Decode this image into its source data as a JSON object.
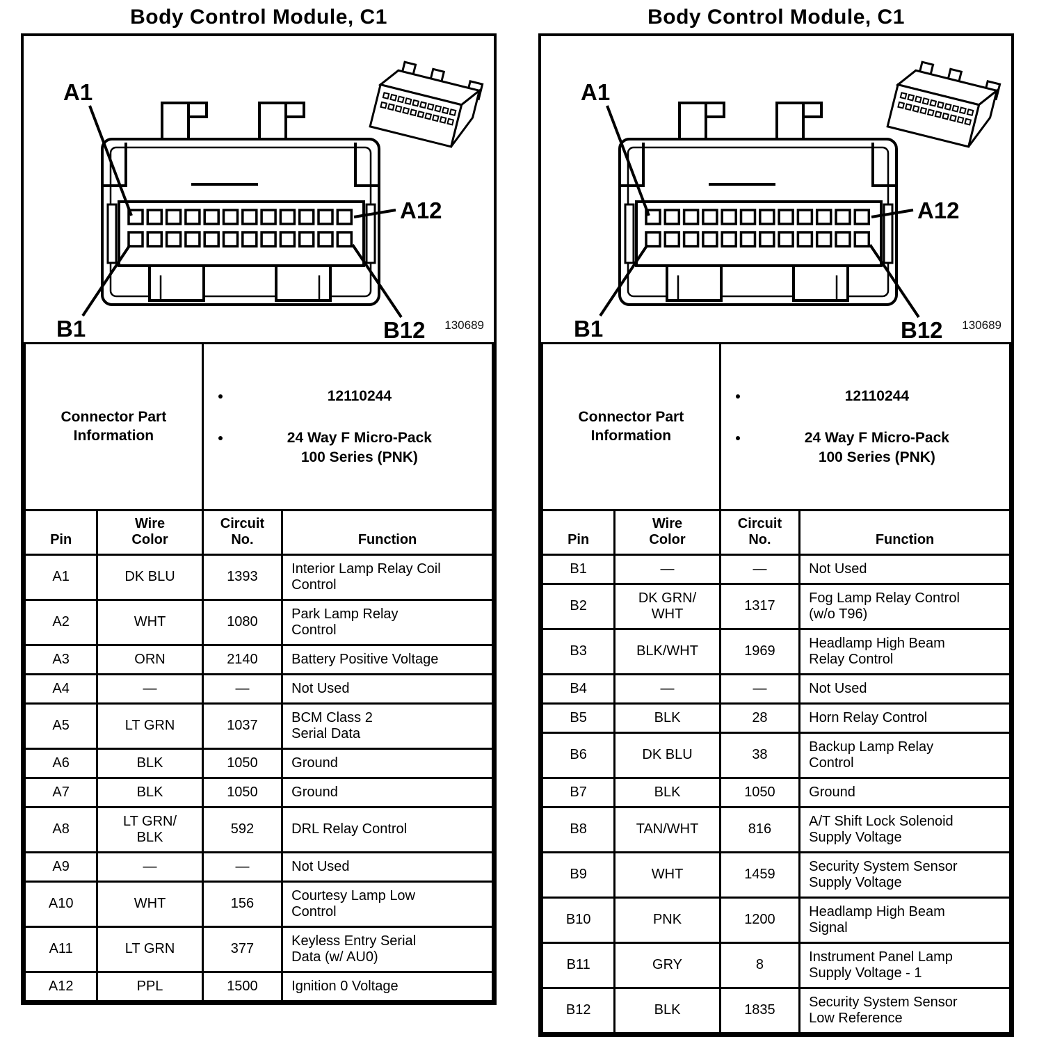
{
  "colors": {
    "ink": "#000000",
    "paper": "#ffffff"
  },
  "panels": [
    {
      "title": "Body Control Module, C1",
      "diagram": {
        "labels": {
          "a1": "A1",
          "a12": "A12",
          "b1": "B1",
          "b12": "B12"
        },
        "figure_number": "130689"
      },
      "part_info": {
        "label": "Connector Part\nInformation",
        "bullets": [
          "12110244",
          "24 Way F Micro-Pack\n100 Series (PNK)"
        ]
      },
      "columns": [
        "Pin",
        "Wire\nColor",
        "Circuit\nNo.",
        "Function"
      ],
      "rows": [
        {
          "pin": "A1",
          "wire_color": "DK BLU",
          "circuit_no": "1393",
          "function": "Interior Lamp Relay Coil\nControl"
        },
        {
          "pin": "A2",
          "wire_color": "WHT",
          "circuit_no": "1080",
          "function": "Park Lamp Relay\nControl"
        },
        {
          "pin": "A3",
          "wire_color": "ORN",
          "circuit_no": "2140",
          "function": "Battery Positive Voltage"
        },
        {
          "pin": "A4",
          "wire_color": "—",
          "circuit_no": "—",
          "function": "Not Used"
        },
        {
          "pin": "A5",
          "wire_color": "LT GRN",
          "circuit_no": "1037",
          "function": "BCM Class 2\nSerial Data"
        },
        {
          "pin": "A6",
          "wire_color": "BLK",
          "circuit_no": "1050",
          "function": "Ground"
        },
        {
          "pin": "A7",
          "wire_color": "BLK",
          "circuit_no": "1050",
          "function": "Ground"
        },
        {
          "pin": "A8",
          "wire_color": "LT GRN/\nBLK",
          "circuit_no": "592",
          "function": "DRL Relay Control"
        },
        {
          "pin": "A9",
          "wire_color": "—",
          "circuit_no": "—",
          "function": "Not Used"
        },
        {
          "pin": "A10",
          "wire_color": "WHT",
          "circuit_no": "156",
          "function": "Courtesy Lamp Low\nControl"
        },
        {
          "pin": "A11",
          "wire_color": "LT GRN",
          "circuit_no": "377",
          "function": "Keyless Entry Serial\nData (w/ AU0)"
        },
        {
          "pin": "A12",
          "wire_color": "PPL",
          "circuit_no": "1500",
          "function": "Ignition 0 Voltage"
        }
      ]
    },
    {
      "title": "Body Control Module, C1",
      "diagram": {
        "labels": {
          "a1": "A1",
          "a12": "A12",
          "b1": "B1",
          "b12": "B12"
        },
        "figure_number": "130689"
      },
      "part_info": {
        "label": "Connector Part\nInformation",
        "bullets": [
          "12110244",
          "24 Way F Micro-Pack\n100 Series (PNK)"
        ]
      },
      "columns": [
        "Pin",
        "Wire\nColor",
        "Circuit\nNo.",
        "Function"
      ],
      "rows": [
        {
          "pin": "B1",
          "wire_color": "—",
          "circuit_no": "—",
          "function": "Not Used"
        },
        {
          "pin": "B2",
          "wire_color": "DK GRN/\nWHT",
          "circuit_no": "1317",
          "function": "Fog Lamp Relay Control\n(w/o T96)"
        },
        {
          "pin": "B3",
          "wire_color": "BLK/WHT",
          "circuit_no": "1969",
          "function": "Headlamp High Beam\nRelay Control"
        },
        {
          "pin": "B4",
          "wire_color": "—",
          "circuit_no": "—",
          "function": "Not Used"
        },
        {
          "pin": "B5",
          "wire_color": "BLK",
          "circuit_no": "28",
          "function": "Horn Relay Control"
        },
        {
          "pin": "B6",
          "wire_color": "DK BLU",
          "circuit_no": "38",
          "function": "Backup Lamp Relay\nControl"
        },
        {
          "pin": "B7",
          "wire_color": "BLK",
          "circuit_no": "1050",
          "function": "Ground"
        },
        {
          "pin": "B8",
          "wire_color": "TAN/WHT",
          "circuit_no": "816",
          "function": "A/T Shift Lock Solenoid\nSupply Voltage"
        },
        {
          "pin": "B9",
          "wire_color": "WHT",
          "circuit_no": "1459",
          "function": "Security System Sensor\nSupply Voltage"
        },
        {
          "pin": "B10",
          "wire_color": "PNK",
          "circuit_no": "1200",
          "function": "Headlamp High Beam\nSignal"
        },
        {
          "pin": "B11",
          "wire_color": "GRY",
          "circuit_no": "8",
          "function": "Instrument Panel Lamp\nSupply Voltage - 1"
        },
        {
          "pin": "B12",
          "wire_color": "BLK",
          "circuit_no": "1835",
          "function": "Security System Sensor\nLow Reference"
        }
      ]
    }
  ]
}
